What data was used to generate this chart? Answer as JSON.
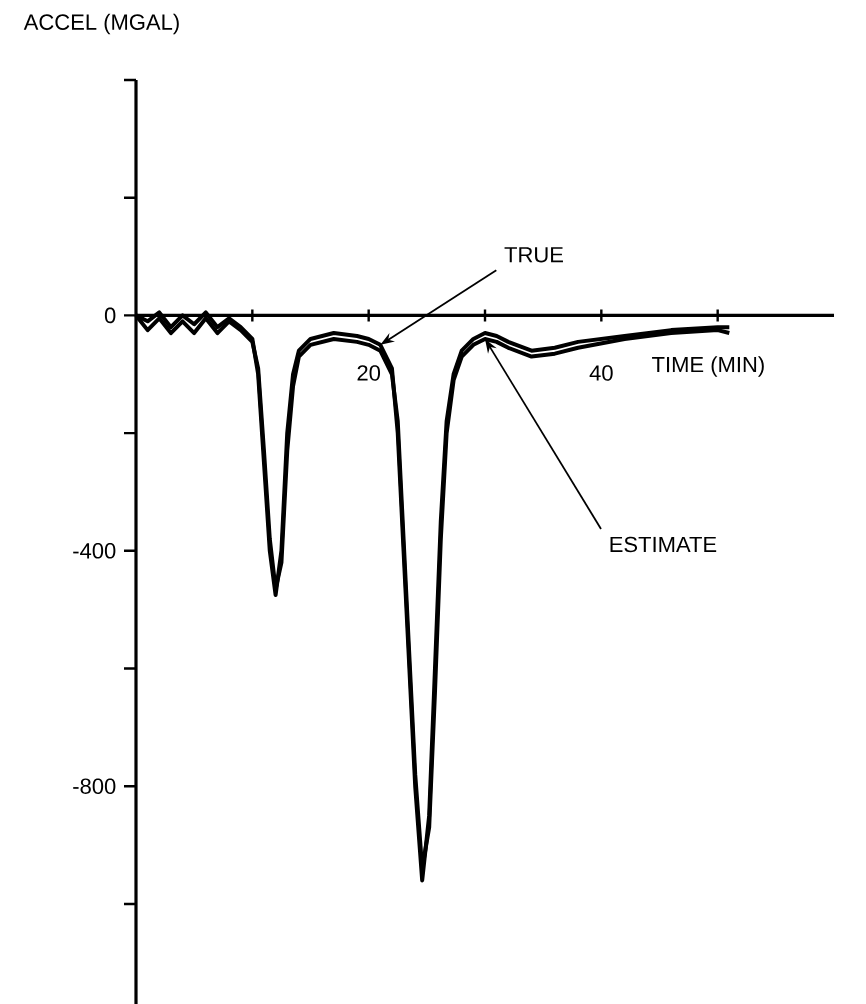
{
  "chart_data": {
    "type": "line",
    "xlabel": "TIME (MIN)",
    "ylabel": "ACCEL (MGAL)",
    "x": [
      0,
      1,
      2,
      3,
      4,
      5,
      6,
      7,
      8,
      9,
      10,
      10.5,
      11,
      11.5,
      12,
      12.5,
      13,
      13.5,
      14,
      15,
      17,
      19,
      20,
      21,
      22,
      22.5,
      23,
      23.5,
      24,
      24.6,
      25.2,
      25.7,
      26.2,
      26.7,
      27.3,
      28,
      29,
      30,
      31,
      32,
      34,
      36,
      38,
      42,
      46,
      50,
      51
    ],
    "series": [
      {
        "color": "#000000",
        "values": [
          0,
          -10,
          5,
          -20,
          0,
          -15,
          5,
          -20,
          -5,
          -20,
          -40,
          -100,
          -250,
          -400,
          -475,
          -400,
          -200,
          -100,
          -60,
          -40,
          -30,
          -35,
          -40,
          -50,
          -90,
          -200,
          -400,
          -600,
          -800,
          -960,
          -850,
          -600,
          -350,
          -180,
          -100,
          -60,
          -40,
          -30,
          -35,
          -45,
          -60,
          -55,
          -45,
          -35,
          -25,
          -20,
          -20
        ]
      },
      {
        "color": "#000000",
        "values": [
          0,
          -25,
          -5,
          -30,
          -10,
          -30,
          -5,
          -30,
          -10,
          -25,
          -45,
          -90,
          -230,
          -380,
          -465,
          -420,
          -230,
          -120,
          -70,
          -50,
          -40,
          -45,
          -50,
          -60,
          -100,
          -180,
          -380,
          -580,
          -780,
          -940,
          -870,
          -640,
          -380,
          -200,
          -110,
          -70,
          -50,
          -40,
          -45,
          -55,
          -70,
          -65,
          -55,
          -40,
          -30,
          -25,
          -30
        ]
      }
    ],
    "xlim": [
      0,
      60
    ],
    "ylim": [
      -1170,
      400
    ],
    "xticks": [
      {
        "value": 10,
        "label": null
      },
      20,
      {
        "value": 30,
        "label": null
      },
      40,
      {
        "value": 50,
        "label": null
      }
    ],
    "yticks": [
      {
        "value": 400,
        "label": null
      },
      {
        "value": 200,
        "label": null
      },
      0,
      {
        "value": -200,
        "label": null
      },
      -400,
      {
        "value": -600,
        "label": null
      },
      -800,
      {
        "value": -1000,
        "label": null
      }
    ],
    "annotations": [
      {
        "text": "TRUE",
        "x": 21,
        "y": -50
      },
      {
        "text": "ESTIMATE",
        "x": 30,
        "y": -40
      }
    ]
  }
}
